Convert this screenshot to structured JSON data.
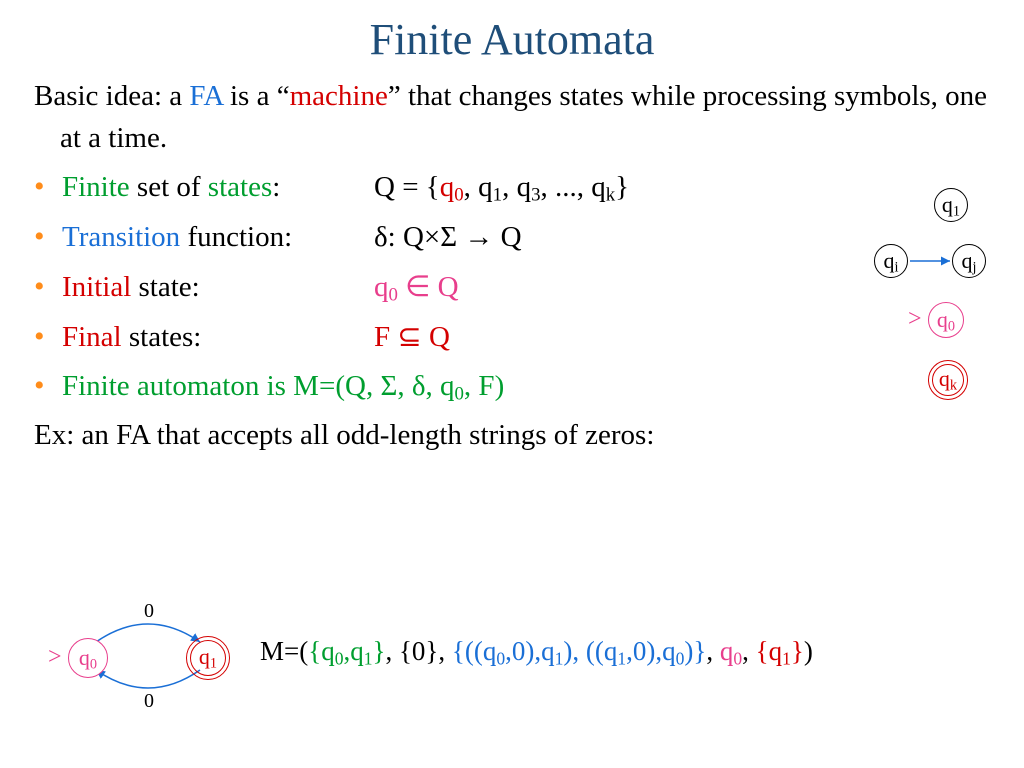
{
  "title": "Finite Automata",
  "colors": {
    "title": "#1f4e79",
    "bullet": "#ff8c1a",
    "green": "#009e2f",
    "red": "#d40000",
    "blue": "#1a6fd6",
    "pink": "#e83e8c",
    "black": "#000000",
    "background": "#ffffff"
  },
  "intro": {
    "pre": "Basic idea: a ",
    "fa": "FA",
    "mid": " is a “",
    "machine": "machine",
    "post": "” that changes states while processing symbols, one at a time."
  },
  "bullets": [
    {
      "label_parts": [
        {
          "t": "Finite",
          "c": "green"
        },
        {
          "t": " set of ",
          "c": "black"
        },
        {
          "t": "states",
          "c": "green"
        },
        {
          "t": ":",
          "c": "black"
        }
      ],
      "math_parts": [
        {
          "t": "Q = {",
          "c": "black"
        },
        {
          "t": "q",
          "c": "red",
          "sub": "0"
        },
        {
          "t": ", q",
          "c": "black",
          "sub": "1"
        },
        {
          "t": ", q",
          "c": "black",
          "sub": "3"
        },
        {
          "t": ", ..., q",
          "c": "black",
          "sub": "k"
        },
        {
          "t": "}",
          "c": "black"
        }
      ]
    },
    {
      "label_parts": [
        {
          "t": "Transition",
          "c": "blue"
        },
        {
          "t": " function:",
          "c": "black"
        }
      ],
      "math_parts": [
        {
          "t": "δ: Q×Σ → Q",
          "c": "black"
        }
      ]
    },
    {
      "label_parts": [
        {
          "t": "Initial",
          "c": "red"
        },
        {
          "t": " state:",
          "c": "black"
        }
      ],
      "math_parts": [
        {
          "t": "q",
          "c": "pink",
          "sub": "0"
        },
        {
          "t": " ∈ Q",
          "c": "pink"
        }
      ]
    },
    {
      "label_parts": [
        {
          "t": "Final",
          "c": "red"
        },
        {
          "t": " states:",
          "c": "black"
        }
      ],
      "math_parts": [
        {
          "t": "F ",
          "c": "red"
        },
        {
          "t": "⊆",
          "c": "red"
        },
        {
          "t": " Q",
          "c": "red"
        }
      ]
    },
    {
      "label_parts": [
        {
          "t": "Finite",
          "c": "green"
        },
        {
          "t": " automaton is M=(",
          "c": "green"
        },
        {
          "t": "Q",
          "c": "green"
        },
        {
          "t": ", ",
          "c": "green"
        },
        {
          "t": "Σ",
          "c": "green"
        },
        {
          "t": ", ",
          "c": "green"
        },
        {
          "t": "δ",
          "c": "green"
        },
        {
          "t": ", ",
          "c": "green"
        },
        {
          "t": "q",
          "c": "green",
          "sub": "0"
        },
        {
          "t": ", ",
          "c": "green"
        },
        {
          "t": "F",
          "c": "green"
        },
        {
          "t": ")",
          "c": "green"
        }
      ],
      "math_parts": []
    }
  ],
  "example_line": "Ex: an FA that accepts all odd-length strings of zeros:",
  "side_states": {
    "q1": {
      "label": "q",
      "sub": "1"
    },
    "qi": {
      "label": "q",
      "sub": "i"
    },
    "qj": {
      "label": "q",
      "sub": "j"
    },
    "q0": {
      "label": "q",
      "sub": "0",
      "marker": ">"
    },
    "qk": {
      "label": "q",
      "sub": "k"
    }
  },
  "bottom_fa": {
    "q0": {
      "label": "q",
      "sub": "0",
      "marker": ">"
    },
    "q1": {
      "label": "q",
      "sub": "1"
    },
    "edge_top": "0",
    "edge_bottom": "0"
  },
  "m_def": {
    "parts": [
      {
        "t": "M=(",
        "c": "black"
      },
      {
        "t": "{q",
        "c": "green",
        "sub": "0"
      },
      {
        "t": ",q",
        "c": "green",
        "sub": "1"
      },
      {
        "t": "}",
        "c": "green"
      },
      {
        "t": ", ",
        "c": "black"
      },
      {
        "t": "{0}",
        "c": "black"
      },
      {
        "t": ", ",
        "c": "black"
      },
      {
        "t": "{",
        "c": "blue"
      },
      {
        "t": "((q",
        "c": "blue",
        "sub": "0"
      },
      {
        "t": ",0),q",
        "c": "blue",
        "sub": "1"
      },
      {
        "t": ")",
        "c": "blue"
      },
      {
        "t": ", ",
        "c": "blue"
      },
      {
        "t": "((q",
        "c": "blue",
        "sub": "1"
      },
      {
        "t": ",0),q",
        "c": "blue",
        "sub": "0"
      },
      {
        "t": ")",
        "c": "blue"
      },
      {
        "t": "}",
        "c": "blue"
      },
      {
        "t": ", ",
        "c": "black"
      },
      {
        "t": "q",
        "c": "pink",
        "sub": "0"
      },
      {
        "t": ", ",
        "c": "black"
      },
      {
        "t": "{q",
        "c": "red",
        "sub": "1"
      },
      {
        "t": "}",
        "c": "red"
      },
      {
        "t": ")",
        "c": "black"
      }
    ]
  },
  "typography": {
    "title_fontsize": 44,
    "body_fontsize": 29,
    "mdef_fontsize": 27,
    "state_fontsize": 22,
    "font_family": "Times New Roman"
  }
}
